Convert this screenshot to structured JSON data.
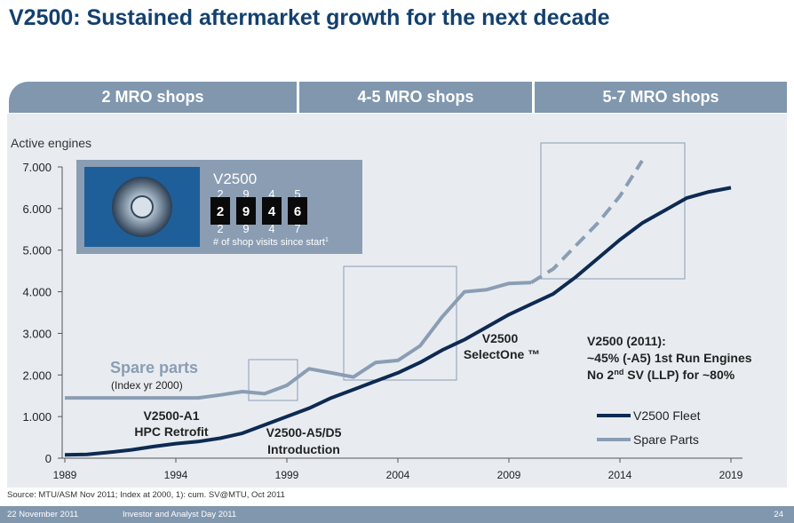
{
  "title": "V2500: Sustained aftermarket growth for the next decade",
  "banners": [
    "2 MRO shops",
    "4-5 MRO shops",
    "5-7 MRO shops"
  ],
  "inset": {
    "label": "V2500",
    "counter_top": [
      "2",
      "9",
      "4",
      "5"
    ],
    "counter_mid": [
      "2",
      "9",
      "4",
      "6"
    ],
    "counter_bot": [
      "2",
      "9",
      "4",
      "7"
    ],
    "caption": "# of shop visits since start",
    "caption_sup": "1"
  },
  "annotations": {
    "spare_parts_title": "Spare parts",
    "spare_parts_sub": "(Index yr 2000)",
    "a1_line1": "V2500-A1",
    "a1_line2": "HPC Retrofit",
    "a5_line1": "V2500-A5/D5",
    "a5_line2": "Introduction",
    "selectone_line1": "V2500",
    "selectone_line2": "SelectOne ™",
    "fact_line1": "V2500 (2011):",
    "fact_line2": "~45% (-A5) 1st Run Engines",
    "fact_line3_a": "No 2",
    "fact_line3_sup": "nd",
    "fact_line3_b": " SV (LLP) for ~80%"
  },
  "chart_data": {
    "type": "line",
    "ylabel": "Active engines",
    "ylim": [
      0,
      7000
    ],
    "yticks": [
      0,
      1000,
      2000,
      3000,
      4000,
      5000,
      6000,
      7000
    ],
    "ytick_labels": [
      "0",
      "1.000",
      "2.000",
      "3.000",
      "4.000",
      "5.000",
      "6.000",
      "7.000"
    ],
    "xlim": [
      1989,
      2019
    ],
    "xticks": [
      1989,
      1994,
      1999,
      2004,
      2009,
      2014,
      2019
    ],
    "xtick_labels": [
      "1989",
      "1994",
      "1999",
      "2004",
      "2009",
      "2014",
      "2019"
    ],
    "legend": {
      "position": "bottom-right",
      "entries": [
        "V2500 Fleet",
        "Spare Parts"
      ]
    },
    "series": [
      {
        "name": "V2500 Fleet",
        "color": "#0d2a52",
        "x": [
          1989,
          1990,
          1991,
          1992,
          1993,
          1994,
          1995,
          1996,
          1997,
          1998,
          1999,
          2000,
          2001,
          2002,
          2003,
          2004,
          2005,
          2006,
          2007,
          2008,
          2009,
          2010,
          2011,
          2012,
          2013,
          2014,
          2015,
          2016,
          2017,
          2018,
          2019
        ],
        "values": [
          80,
          90,
          140,
          200,
          280,
          350,
          400,
          480,
          600,
          800,
          1000,
          1200,
          1450,
          1650,
          1850,
          2050,
          2300,
          2600,
          2850,
          3150,
          3450,
          3700,
          3950,
          4350,
          4800,
          5250,
          5650,
          5950,
          6250,
          6400,
          6500
        ]
      },
      {
        "name": "Spare Parts",
        "color": "#8a9db3",
        "x": [
          1989,
          1990,
          1991,
          1992,
          1993,
          1994,
          1995,
          1996,
          1997,
          1998,
          1999,
          2000,
          2001,
          2002,
          2003,
          2004,
          2005,
          2006,
          2007,
          2008,
          2009,
          2010
        ],
        "values": [
          1450,
          1450,
          1450,
          1450,
          1450,
          1450,
          1450,
          1520,
          1600,
          1550,
          1750,
          2150,
          2050,
          1950,
          2300,
          2350,
          2700,
          3400,
          4000,
          4050,
          4200,
          4220
        ]
      },
      {
        "name": "Spare Parts (projection)",
        "color": "#8a9db3",
        "dashed": true,
        "x": [
          2010,
          2011,
          2012,
          2013,
          2014,
          2015
        ],
        "values": [
          4220,
          4550,
          5100,
          5650,
          6300,
          7150
        ]
      }
    ]
  },
  "source": "Source: MTU/ASM Nov 2011; Index at 2000, 1): cum. SV@MTU, Oct 2011",
  "footer": {
    "date": "22 November 2011",
    "event": "Investor and Analyst Day 2011",
    "page": "24"
  },
  "colors": {
    "title": "#13406e",
    "banner": "#8097ae",
    "panel": "#e8ecf1",
    "fleet": "#0d2a52",
    "spare": "#8a9db3",
    "inset": "#8a9db3"
  }
}
